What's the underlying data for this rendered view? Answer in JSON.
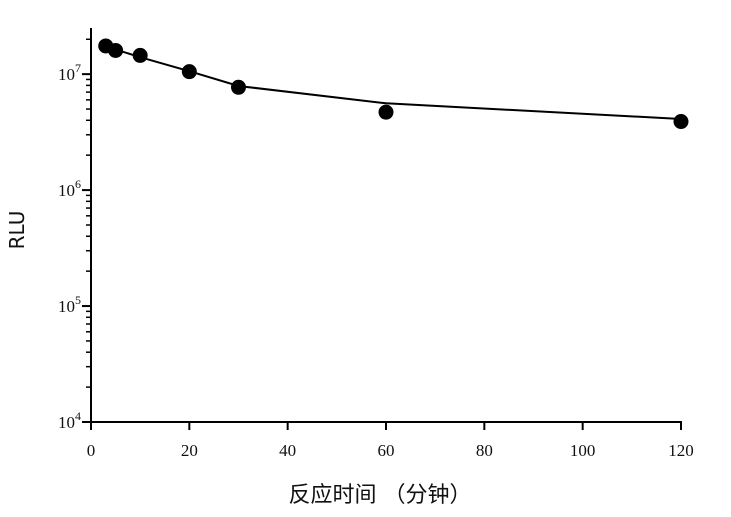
{
  "chart_data": {
    "type": "line",
    "xlabel": "反应时间 （分钟）",
    "ylabel": "RLU",
    "xlim": [
      0,
      120
    ],
    "ylim": [
      10000,
      25000000
    ],
    "yscale": "log",
    "x_ticks": [
      0,
      20,
      40,
      60,
      80,
      100,
      120
    ],
    "y_ticks": [
      {
        "base": "10",
        "exp": "4",
        "value": 10000
      },
      {
        "base": "10",
        "exp": "5",
        "value": 100000
      },
      {
        "base": "10",
        "exp": "6",
        "value": 1000000
      },
      {
        "base": "10",
        "exp": "7",
        "value": 10000000
      }
    ],
    "series": [
      {
        "markers": "filled-circle",
        "color": "#000000",
        "points": [
          {
            "x": 3,
            "y": 17500000
          },
          {
            "x": 5,
            "y": 16000000
          },
          {
            "x": 10,
            "y": 14500000
          },
          {
            "x": 20,
            "y": 10500000
          },
          {
            "x": 30,
            "y": 7700000
          },
          {
            "x": 60,
            "y": 4700000
          },
          {
            "x": 120,
            "y": 3900000
          }
        ],
        "fit_line": [
          {
            "x": 3,
            "y": 17500000
          },
          {
            "x": 5,
            "y": 16300000
          },
          {
            "x": 10,
            "y": 14000000
          },
          {
            "x": 20,
            "y": 10600000
          },
          {
            "x": 30,
            "y": 7900000
          },
          {
            "x": 60,
            "y": 5600000
          },
          {
            "x": 120,
            "y": 4100000
          }
        ]
      }
    ],
    "grid": false,
    "legend": "none"
  }
}
